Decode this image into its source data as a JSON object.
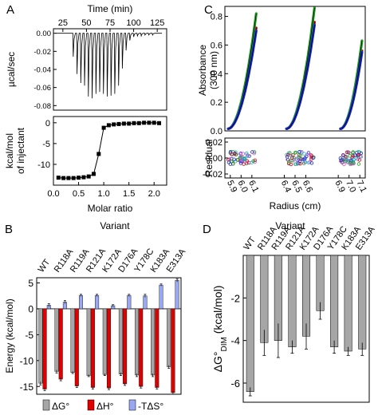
{
  "panel_labels": [
    "A",
    "B",
    "C",
    "D"
  ],
  "chart_data": [
    {
      "panel": "A-top",
      "type": "line",
      "title": "",
      "xlabel": "Time (min)",
      "ylabel": "µcal/sec",
      "xlim": [
        15,
        135
      ],
      "ylim": [
        -0.085,
        0.005
      ],
      "xticks": [
        "25",
        "50",
        "75",
        "100",
        "125"
      ],
      "yticks": [
        "0.00",
        "-0.02",
        "-0.04",
        "-0.06",
        "-0.08"
      ],
      "injection_times": [
        36,
        40,
        44,
        48,
        52,
        56,
        60,
        64,
        68,
        72,
        76,
        80,
        84,
        88,
        92,
        96,
        100,
        104,
        108,
        112,
        116,
        120
      ],
      "injection_peaks": [
        -0.026,
        -0.045,
        -0.055,
        -0.058,
        -0.07,
        -0.072,
        -0.067,
        -0.065,
        -0.067,
        -0.07,
        -0.069,
        -0.067,
        -0.058,
        -0.039,
        -0.019,
        -0.008,
        -0.004,
        -0.003,
        -0.003,
        -0.002,
        -0.002,
        -0.002
      ]
    },
    {
      "panel": "A-bottom",
      "type": "scatter",
      "title": "",
      "xlabel": "Molar ratio",
      "ylabel": "kcal/mol of injectant",
      "xlim": [
        0.0,
        2.25
      ],
      "ylim": [
        -15,
        1.5
      ],
      "xticks": [
        "0.0",
        "0.5",
        "1.0",
        "1.5",
        "2.0"
      ],
      "yticks": [
        "0",
        "-5",
        "-10"
      ],
      "x": [
        0.1,
        0.2,
        0.3,
        0.4,
        0.5,
        0.6,
        0.7,
        0.8,
        0.9,
        1.0,
        1.1,
        1.2,
        1.3,
        1.4,
        1.5,
        1.6,
        1.7,
        1.8,
        1.9,
        2.0,
        2.1
      ],
      "y": [
        -13.2,
        -13.3,
        -13.3,
        -13.3,
        -13.2,
        -13.1,
        -12.9,
        -12.3,
        -7.5,
        -1.2,
        -0.6,
        -0.4,
        -0.3,
        -0.2,
        -0.2,
        -0.1,
        -0.1,
        0.0,
        0.0,
        0.0,
        -0.1
      ]
    },
    {
      "panel": "C-top",
      "type": "line",
      "title": "",
      "xlabel": "",
      "ylabel": "Absorbance (300 nm)",
      "xlim": [
        5.85,
        7.15
      ],
      "ylim": [
        0.0,
        0.87
      ],
      "yticks": [
        "0.0",
        "0.2",
        "0.4",
        "0.6",
        "0.8"
      ],
      "segments": [
        [
          5.88,
          6.14
        ],
        [
          6.42,
          6.68
        ],
        [
          6.92,
          7.12
        ]
      ],
      "series": [
        {
          "name": "",
          "color": "#d0021b",
          "end_values": [
            0.72,
            0.76,
            0.56
          ]
        },
        {
          "name": "",
          "color": "#1fa01f",
          "end_values": [
            0.82,
            0.86,
            0.63
          ]
        },
        {
          "name": "",
          "color": "#1a2ccf",
          "end_values": [
            0.7,
            0.74,
            0.55
          ]
        }
      ]
    },
    {
      "panel": "C-bottom",
      "type": "scatter",
      "title": "",
      "xlabel": "Radius (cm)",
      "ylabel": "Residual",
      "xlim": [
        5.85,
        7.15
      ],
      "ylim": [
        -0.025,
        0.025
      ],
      "xticks": [
        "5.9",
        "6.0",
        "6.1",
        "6.4",
        "6.5",
        "6.6",
        "6.9",
        "7.0",
        "7.1"
      ],
      "yticks": [
        "0.02",
        "0.00",
        "-0.02"
      ],
      "residual_spread": 0.008
    },
    {
      "panel": "B",
      "type": "bar",
      "title": "Variant",
      "xlabel": "",
      "ylabel": "Energy (kcal/mol)",
      "ylim": [
        -16.5,
        6
      ],
      "yticks": [
        "5",
        "0",
        "-5",
        "-10",
        "-15"
      ],
      "categories": [
        "WT",
        "R118A",
        "R119A",
        "R121A",
        "K172A",
        "D176A",
        "Y178C",
        "K183A",
        "E313A"
      ],
      "series": [
        {
          "name": "ΔG°",
          "color": "#a6a6a6",
          "values": [
            -14.4,
            -12.1,
            -12.3,
            -12.9,
            -12.7,
            -12.6,
            -12.8,
            -12.8,
            -11.2
          ],
          "errors": [
            0.3,
            0.3,
            0.2,
            0.2,
            0.2,
            0.3,
            0.3,
            0.3,
            0.3
          ]
        },
        {
          "name": "ΔH°",
          "color": "#e00000",
          "values": [
            -15.5,
            -13.6,
            -14.9,
            -15.2,
            -15.3,
            -14.5,
            -15.0,
            -15.2,
            -16.2
          ],
          "errors": [
            0.3,
            0.3,
            0.3,
            0.3,
            0.3,
            0.3,
            0.3,
            0.3,
            0.3
          ]
        },
        {
          "name": "-TΔS°",
          "color": "#9aa8f2",
          "values": [
            0.7,
            1.3,
            2.6,
            2.6,
            0.6,
            2.6,
            2.5,
            4.6,
            5.5
          ],
          "errors": [
            0.3,
            0.3,
            0.2,
            0.2,
            0.2,
            0.2,
            0.3,
            0.2,
            0.3
          ]
        }
      ],
      "legend": [
        "ΔG°",
        "ΔH°",
        "-TΔS°"
      ],
      "legend_position": "bottom"
    },
    {
      "panel": "D",
      "type": "bar",
      "title": "Variant",
      "xlabel": "",
      "ylabel": "ΔG°DIM (kcal/mol)",
      "ylim": [
        -6.9,
        0
      ],
      "yticks": [
        "-2",
        "-4",
        "-6"
      ],
      "categories": [
        "WT",
        "R118A",
        "R119A",
        "R121A",
        "K172A",
        "D176A",
        "Y178C",
        "K183A",
        "E313A"
      ],
      "series": [
        {
          "name": "",
          "color": "#a6a6a6",
          "values": [
            -6.4,
            -4.1,
            -4.0,
            -4.3,
            -3.8,
            -2.6,
            -4.3,
            -4.5,
            -4.4
          ],
          "errors": [
            0.2,
            0.6,
            0.8,
            0.3,
            0.6,
            0.4,
            0.3,
            0.2,
            0.3
          ]
        }
      ]
    }
  ]
}
